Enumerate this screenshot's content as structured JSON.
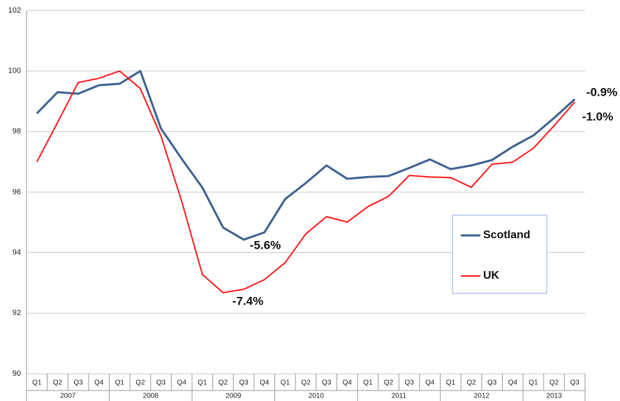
{
  "chart_data": {
    "type": "line",
    "categories": [
      "Q1",
      "Q2",
      "Q3",
      "Q4",
      "Q1",
      "Q2",
      "Q3",
      "Q4",
      "Q1",
      "Q2",
      "Q3",
      "Q4",
      "Q1",
      "Q2",
      "Q3",
      "Q4",
      "Q1",
      "Q2",
      "Q3",
      "Q4",
      "Q1",
      "Q2",
      "Q3",
      "Q4",
      "Q1",
      "Q2",
      "Q3"
    ],
    "years": [
      "2007",
      "2008",
      "2009",
      "2010",
      "2011",
      "2012",
      "2013"
    ],
    "series": [
      {
        "name": "Scotland",
        "color": "#3d6191",
        "values": [
          98.6,
          99.3,
          99.25,
          99.53,
          99.58,
          100,
          98.1,
          97.1,
          96.15,
          94.83,
          94.43,
          94.67,
          95.77,
          96.3,
          96.88,
          96.44,
          96.5,
          96.53,
          96.8,
          97.08,
          96.76,
          96.88,
          97.06,
          97.5,
          97.87,
          98.45,
          99.07
        ]
      },
      {
        "name": "UK",
        "color": "#ff1a1a",
        "values": [
          97.0,
          98.3,
          99.62,
          99.76,
          100,
          99.42,
          97.85,
          95.7,
          93.28,
          92.68,
          92.79,
          93.11,
          93.67,
          94.62,
          95.19,
          95.01,
          95.52,
          95.86,
          96.55,
          96.5,
          96.48,
          96.16,
          96.92,
          96.99,
          97.45,
          98.19,
          98.98
        ]
      }
    ],
    "annotations": [
      "-5.6%",
      "-7.4%",
      "-0.9%",
      "-1.0%"
    ],
    "ylim": [
      90,
      102
    ],
    "yticks": [
      90,
      92,
      94,
      96,
      98,
      100,
      102
    ],
    "grid": true
  }
}
